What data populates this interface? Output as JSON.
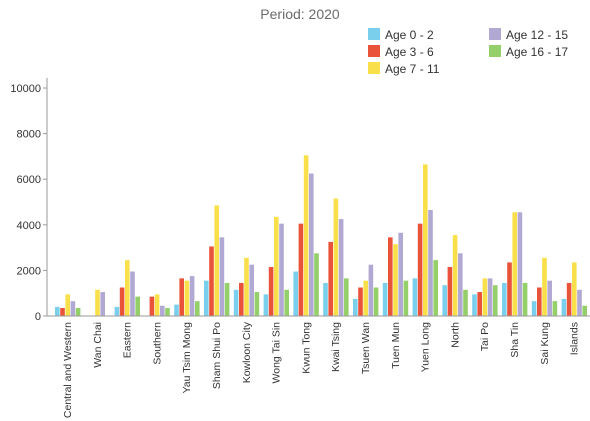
{
  "chart_data": {
    "type": "bar",
    "title": "Period: 2020",
    "xlabel": "",
    "ylabel": "",
    "ylim": [
      0,
      10000
    ],
    "yticks": [
      0,
      2000,
      4000,
      6000,
      8000,
      10000
    ],
    "legend_position": "top-right",
    "grid": false,
    "categories": [
      "Central and Western",
      "Wan Chai",
      "Eastern",
      "Southern",
      "Yau Tsim Mong",
      "Sham Shui Po",
      "Kowloon City",
      "Wong Tai Sin",
      "Kwun Tong",
      "Kwai Tsing",
      "Tsuen Wan",
      "Tuen Mun",
      "Yuen Long",
      "North",
      "Tai Po",
      "Sha Tin",
      "Sai Kung",
      "Islands"
    ],
    "series": [
      {
        "name": "Age 0 - 2",
        "color": "#7ad0ec",
        "values": [
          400,
          0,
          400,
          0,
          500,
          1550,
          1150,
          950,
          1950,
          1450,
          750,
          1450,
          1650,
          1350,
          950,
          1450,
          650,
          750
        ]
      },
      {
        "name": "Age 3 - 6",
        "color": "#e8533a",
        "values": [
          350,
          0,
          1250,
          850,
          1650,
          3050,
          1450,
          2150,
          4050,
          3250,
          1250,
          3450,
          4050,
          2150,
          1050,
          2350,
          1250,
          1450
        ]
      },
      {
        "name": "Age 7 - 11",
        "color": "#f9e04b",
        "values": [
          950,
          1150,
          2450,
          950,
          1550,
          4850,
          2550,
          4350,
          7050,
          5150,
          1550,
          3150,
          6650,
          3550,
          1650,
          4550,
          2550,
          2350
        ]
      },
      {
        "name": "Age 12 - 15",
        "color": "#b1a9d3",
        "values": [
          650,
          1050,
          1950,
          450,
          1750,
          3450,
          2250,
          4050,
          6250,
          4250,
          2250,
          3650,
          4650,
          2750,
          1650,
          4550,
          1550,
          1150
        ]
      },
      {
        "name": "Age 16 - 17",
        "color": "#94cf6a",
        "values": [
          350,
          0,
          850,
          350,
          650,
          1450,
          1050,
          1150,
          2750,
          1650,
          1250,
          1550,
          2450,
          1150,
          1350,
          1450,
          650,
          450
        ]
      }
    ]
  }
}
